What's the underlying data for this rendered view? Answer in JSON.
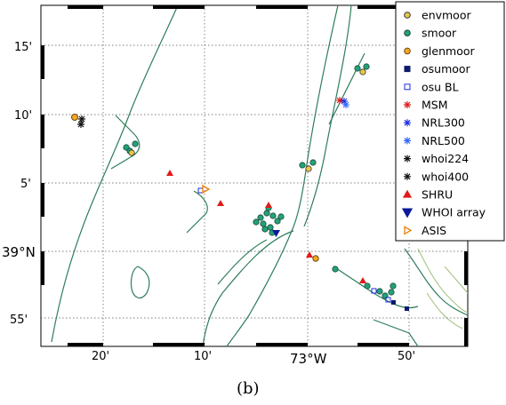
{
  "figure": {
    "caption": "(b)",
    "x_label": "73°W",
    "x_ticks": [
      "20'",
      "10'",
      "50'"
    ],
    "y_label": "39°N",
    "y_ticks": [
      "15'",
      "10'",
      "5'",
      "55'"
    ]
  },
  "legend": [
    {
      "id": "envmoor",
      "label": "envmoor",
      "marker": "circle",
      "fill": "#e8c84a",
      "stroke": "#333333"
    },
    {
      "id": "smoor",
      "label": "smoor",
      "marker": "circle",
      "fill": "#22a27a",
      "stroke": "#1d4a38"
    },
    {
      "id": "glenmoor",
      "label": "glenmoor",
      "marker": "circle",
      "fill": "#f5a623",
      "stroke": "#6b4a10"
    },
    {
      "id": "osumoor",
      "label": "osumoor",
      "marker": "square",
      "fill": "#0b1a6b",
      "stroke": "#0b1a6b"
    },
    {
      "id": "osubl",
      "label": "osu BL",
      "marker": "square-open",
      "fill": "none",
      "stroke": "#1c2fe0"
    },
    {
      "id": "msm",
      "label": "MSM",
      "marker": "star",
      "fill": "none",
      "stroke": "#e01b1b"
    },
    {
      "id": "nrl300",
      "label": "NRL300",
      "marker": "star",
      "fill": "none",
      "stroke": "#1c2fe0"
    },
    {
      "id": "nrl500",
      "label": "NRL500",
      "marker": "star",
      "fill": "none",
      "stroke": "#3366ff"
    },
    {
      "id": "whoi224",
      "label": "whoi224",
      "marker": "star",
      "fill": "none",
      "stroke": "#111111"
    },
    {
      "id": "whoi400",
      "label": "whoi400",
      "marker": "star",
      "fill": "none",
      "stroke": "#111111"
    },
    {
      "id": "shru",
      "label": "SHRU",
      "marker": "triangle-up",
      "fill": "#e01b1b",
      "stroke": "#e01b1b"
    },
    {
      "id": "whoiarray",
      "label": "WHOI array",
      "marker": "triangle-down",
      "fill": "#0b1a9b",
      "stroke": "#0b1a9b"
    },
    {
      "id": "asis",
      "label": "ASIS",
      "marker": "triangle-right",
      "fill": "none",
      "stroke": "#f07b00"
    }
  ],
  "colors": {
    "contour": "#2e7d5b",
    "contour_light": "#9fbf7a",
    "frame": "#000000"
  }
}
